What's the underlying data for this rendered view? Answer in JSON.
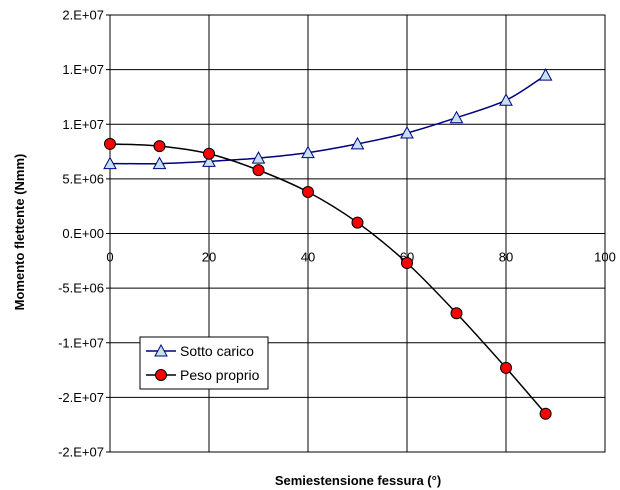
{
  "chart_data": {
    "type": "line",
    "xlabel": "Semiestensione fessura (°)",
    "ylabel": "Momento flettente (Nmm)",
    "xlim": [
      0,
      100
    ],
    "ylim": [
      -20000000,
      20000000
    ],
    "x_ticks": [
      0,
      20,
      40,
      60,
      80,
      100
    ],
    "x_tick_labels": [
      "0",
      "20",
      "40",
      "60",
      "80",
      "100"
    ],
    "y_ticks": [
      20000000,
      15000000,
      10000000,
      5000000,
      0,
      -5000000,
      -10000000,
      -15000000,
      -20000000
    ],
    "y_tick_labels": [
      "2.E+07",
      "1.E+07",
      "1.E+07",
      "5.E+06",
      "0.E+00",
      "-5.E+06",
      "-1.E+07",
      "-2.E+07",
      "-2.E+07"
    ],
    "grid": true,
    "legend_position": "bottom-left",
    "series": [
      {
        "name": "Sotto carico",
        "color": "#000080",
        "marker": "triangle",
        "marker_fill": "#c6e2f0",
        "x": [
          0,
          10,
          20,
          30,
          40,
          50,
          60,
          70,
          80,
          88
        ],
        "y": [
          6400000,
          6400000,
          6600000,
          6900000,
          7400000,
          8200000,
          9200000,
          10600000,
          12200000,
          14500000
        ]
      },
      {
        "name": "Peso proprio",
        "color": "#000000",
        "marker": "circle",
        "marker_fill": "#ff0000",
        "x": [
          0,
          10,
          20,
          30,
          40,
          50,
          60,
          70,
          80,
          88
        ],
        "y": [
          8200000,
          8000000,
          7300000,
          5800000,
          3800000,
          1000000,
          -2700000,
          -7300000,
          -12300000,
          -16500000
        ]
      }
    ]
  }
}
